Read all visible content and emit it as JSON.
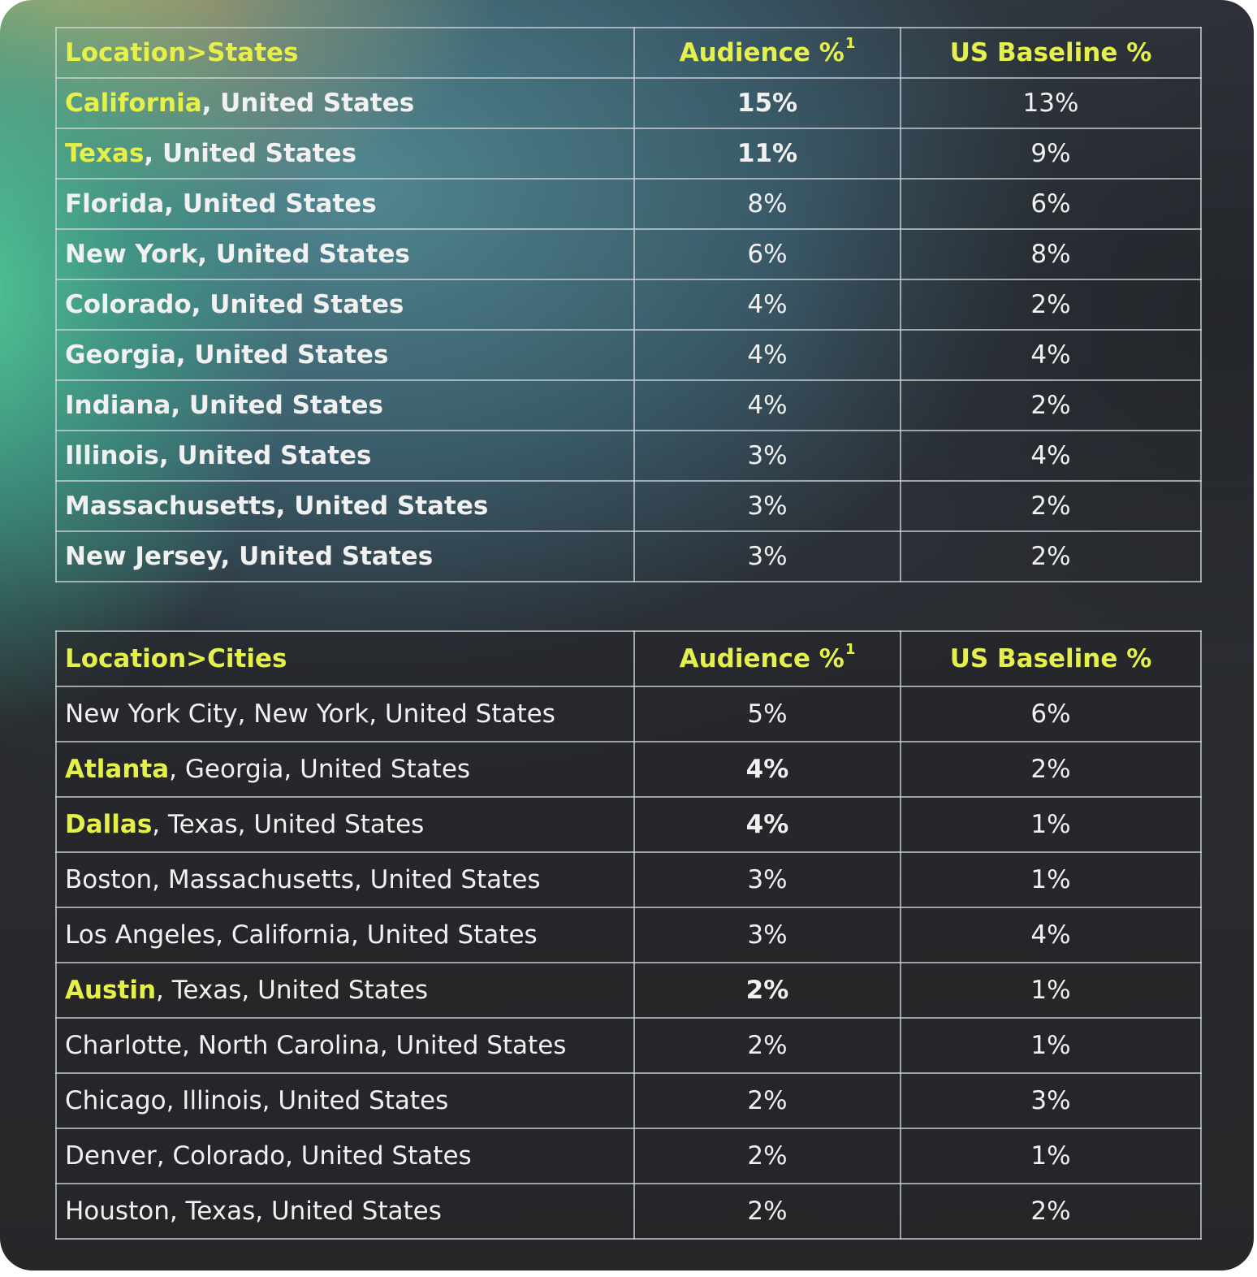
{
  "chart_data": [
    {
      "type": "table",
      "columns": [
        "Location>States",
        "Audience %",
        "US Baseline %"
      ],
      "footnote_marker": "1",
      "rows": [
        {
          "highlight": "California",
          "rest": ", United States",
          "audience": "15%",
          "baseline": "13%",
          "highlighted": true
        },
        {
          "highlight": "Texas",
          "rest": ", United States",
          "audience": "11%",
          "baseline": "9%",
          "highlighted": true
        },
        {
          "highlight": "",
          "rest": "Florida, United States",
          "audience": "8%",
          "baseline": "6%",
          "highlighted": false
        },
        {
          "highlight": "",
          "rest": "New York, United States",
          "audience": "6%",
          "baseline": "8%",
          "highlighted": false
        },
        {
          "highlight": "",
          "rest": "Colorado, United States",
          "audience": "4%",
          "baseline": "2%",
          "highlighted": false
        },
        {
          "highlight": "",
          "rest": "Georgia, United States",
          "audience": "4%",
          "baseline": "4%",
          "highlighted": false
        },
        {
          "highlight": "",
          "rest": "Indiana, United States",
          "audience": "4%",
          "baseline": "2%",
          "highlighted": false
        },
        {
          "highlight": "",
          "rest": "Illinois, United States",
          "audience": "3%",
          "baseline": "4%",
          "highlighted": false
        },
        {
          "highlight": "",
          "rest": "Massachusetts, United States",
          "audience": "3%",
          "baseline": "2%",
          "highlighted": false
        },
        {
          "highlight": "",
          "rest": "New Jersey, United States",
          "audience": "3%",
          "baseline": "2%",
          "highlighted": false
        }
      ]
    },
    {
      "type": "table",
      "columns": [
        "Location>Cities",
        "Audience %",
        "US Baseline %"
      ],
      "footnote_marker": "1",
      "rows": [
        {
          "highlight": "",
          "rest": "New York City, New York, United States",
          "audience": "5%",
          "baseline": "6%",
          "highlighted": false
        },
        {
          "highlight": "Atlanta",
          "rest": ", Georgia, United States",
          "audience": "4%",
          "baseline": "2%",
          "highlighted": true
        },
        {
          "highlight": "Dallas",
          "rest": ", Texas, United States",
          "audience": "4%",
          "baseline": "1%",
          "highlighted": true
        },
        {
          "highlight": "",
          "rest": "Boston, Massachusetts, United States",
          "audience": "3%",
          "baseline": "1%",
          "highlighted": false
        },
        {
          "highlight": "",
          "rest": "Los Angeles, California, United States",
          "audience": "3%",
          "baseline": "4%",
          "highlighted": false
        },
        {
          "highlight": "Austin",
          "rest": ", Texas, United States",
          "audience": "2%",
          "baseline": "1%",
          "highlighted": true
        },
        {
          "highlight": "",
          "rest": "Charlotte, North Carolina, United States",
          "audience": "2%",
          "baseline": "1%",
          "highlighted": false
        },
        {
          "highlight": "",
          "rest": "Chicago, Illinois, United States",
          "audience": "2%",
          "baseline": "3%",
          "highlighted": false
        },
        {
          "highlight": "",
          "rest": "Denver, Colorado, United States",
          "audience": "2%",
          "baseline": "1%",
          "highlighted": false
        },
        {
          "highlight": "",
          "rest": "Houston, Texas, United States",
          "audience": "2%",
          "baseline": "2%",
          "highlighted": false
        }
      ]
    }
  ],
  "colors": {
    "highlight": "#e6f04a",
    "text": "#f1f1f1",
    "border": "#cdd2d7"
  }
}
